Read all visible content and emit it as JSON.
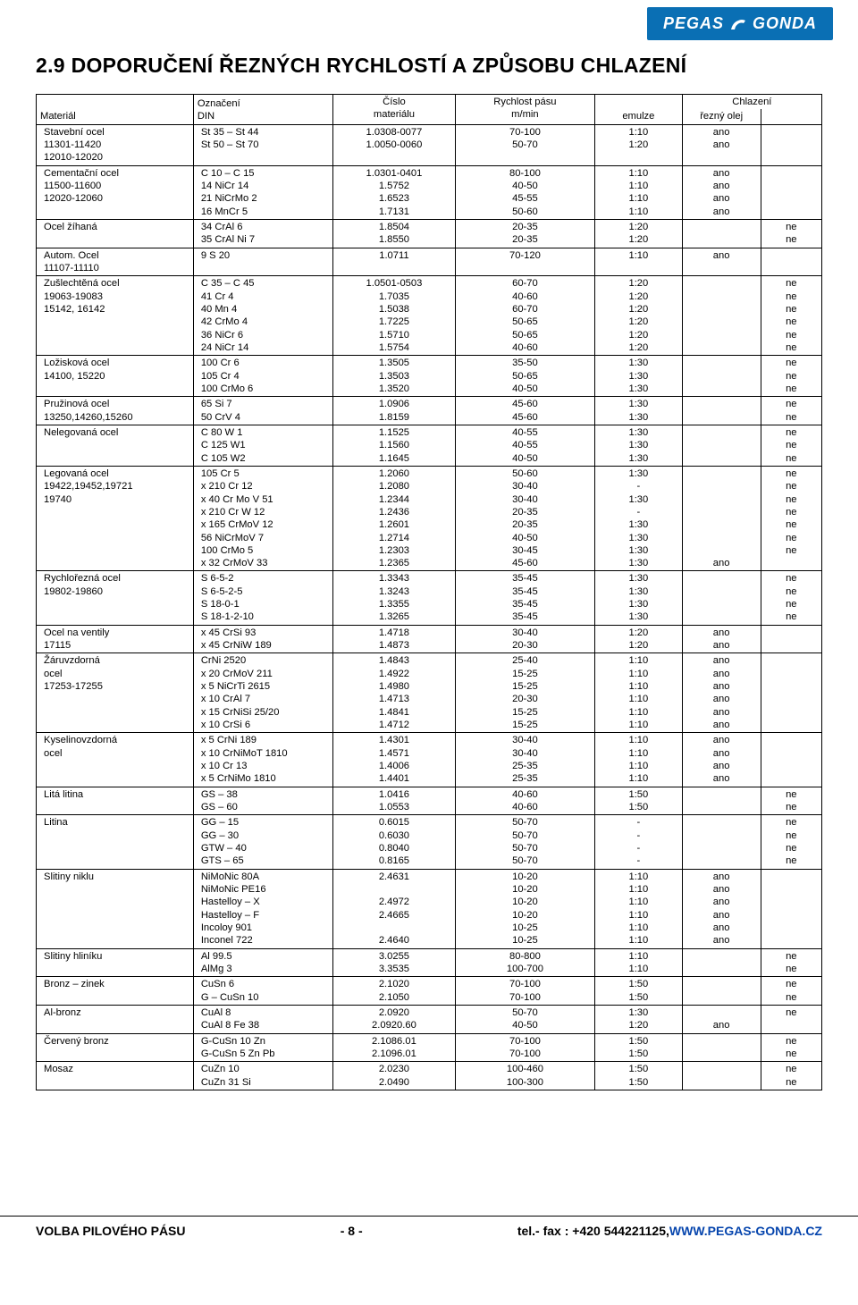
{
  "brand": {
    "name": "PEGAS   GONDA",
    "bg": "#0a6fb4",
    "fg": "#ffffff"
  },
  "title": "2.9  DOPORUČENÍ ŘEZNÝCH RYCHLOSTÍ A ZPŮSOBU CHLAZENÍ",
  "headers": {
    "material": "Materiál",
    "din": "Označení\nDIN",
    "num": "Číslo\nmateriálu",
    "speed": "Rychlost pásu\nm/min",
    "emulsion": "emulze",
    "cooling": "Chlazení",
    "oil": "řezný olej"
  },
  "groups": [
    {
      "material": [
        "Stavební ocel",
        "11301-11420",
        "12010-12020"
      ],
      "din": [
        "St 35 – St 44",
        "St 50 – St 70"
      ],
      "num": [
        "1.0308-0077",
        "1.0050-0060"
      ],
      "speed": [
        "70-100",
        "50-70"
      ],
      "em": [
        "1:10",
        "1:20"
      ],
      "oil": [
        "ano",
        "ano"
      ],
      "blank": [
        "",
        ""
      ]
    },
    {
      "material": [
        "Cementační ocel",
        "11500-11600",
        "12020-12060",
        ""
      ],
      "din": [
        "C 10 – C 15",
        "14 NiCr 14",
        "21 NiCrMo 2",
        "16 MnCr 5"
      ],
      "num": [
        "1.0301-0401",
        "1.5752",
        "1.6523",
        "1.7131"
      ],
      "speed": [
        "80-100",
        "40-50",
        "45-55",
        "50-60"
      ],
      "em": [
        "1:10",
        "1:10",
        "1:10",
        "1:10"
      ],
      "oil": [
        "ano",
        "ano",
        "ano",
        "ano"
      ],
      "blank": [
        "",
        "",
        "",
        ""
      ]
    },
    {
      "material": [
        "Ocel žíhaná",
        ""
      ],
      "din": [
        "34 CrAl 6",
        "35 CrAl Ni 7"
      ],
      "num": [
        "1.8504",
        "1.8550"
      ],
      "speed": [
        "20-35",
        "20-35"
      ],
      "em": [
        "1:20",
        "1:20"
      ],
      "oil": [
        "",
        ""
      ],
      "blank": [
        "ne",
        "ne"
      ]
    },
    {
      "material": [
        "Autom. Ocel",
        "11107-11110"
      ],
      "din": [
        "9 S 20"
      ],
      "num": [
        "1.0711"
      ],
      "speed": [
        "70-120"
      ],
      "em": [
        "1:10"
      ],
      "oil": [
        "ano"
      ],
      "blank": [
        ""
      ]
    },
    {
      "material": [
        "Zušlechtěná ocel",
        "19063-19083",
        "15142, 16142",
        "",
        "",
        ""
      ],
      "din": [
        "C 35 – C 45",
        "41 Cr 4",
        "40 Mn 4",
        "42 CrMo 4",
        "36 NiCr 6",
        "24 NiCr 14"
      ],
      "num": [
        "1.0501-0503",
        "1.7035",
        "1.5038",
        "1.7225",
        "1.5710",
        "1.5754"
      ],
      "speed": [
        "60-70",
        "40-60",
        "60-70",
        "50-65",
        "50-65",
        "40-60"
      ],
      "em": [
        "1:20",
        "1:20",
        "1:20",
        "1:20",
        "1:20",
        "1:20"
      ],
      "oil": [
        "",
        "",
        "",
        "",
        "",
        ""
      ],
      "blank": [
        "ne",
        "ne",
        "ne",
        "ne",
        "ne",
        "ne"
      ]
    },
    {
      "material": [
        "Ložisková ocel",
        "14100, 15220",
        ""
      ],
      "din": [
        "100 Cr 6",
        "105 Cr 4",
        "100 CrMo 6"
      ],
      "num": [
        "1.3505",
        "1.3503",
        "1.3520"
      ],
      "speed": [
        "35-50",
        "50-65",
        "40-50"
      ],
      "em": [
        "1:30",
        "1:30",
        "1:30"
      ],
      "oil": [
        "",
        "",
        ""
      ],
      "blank": [
        "ne",
        "ne",
        "ne"
      ]
    },
    {
      "material": [
        "Pružinová ocel",
        "13250,14260,15260"
      ],
      "din": [
        "65 Si 7",
        "50 CrV 4"
      ],
      "num": [
        "1.0906",
        "1.8159"
      ],
      "speed": [
        "45-60",
        "45-60"
      ],
      "em": [
        "1:30",
        "1:30"
      ],
      "oil": [
        "",
        ""
      ],
      "blank": [
        "ne",
        "ne"
      ]
    },
    {
      "material": [
        "Nelegovaná ocel",
        "",
        ""
      ],
      "din": [
        "C 80 W 1",
        "C 125 W1",
        "C 105 W2"
      ],
      "num": [
        "1.1525",
        "1.1560",
        "1.1645"
      ],
      "speed": [
        "40-55",
        "40-55",
        "40-50"
      ],
      "em": [
        "1:30",
        "1:30",
        "1:30"
      ],
      "oil": [
        "",
        "",
        ""
      ],
      "blank": [
        "ne",
        "ne",
        "ne"
      ]
    },
    {
      "material": [
        "Legovaná ocel",
        "19422,19452,19721",
        "19740",
        "",
        "",
        "",
        "",
        ""
      ],
      "din": [
        "105 Cr 5",
        "x 210 Cr 12",
        "x 40 Cr Mo V 51",
        "x 210 Cr W 12",
        "x 165 CrMoV 12",
        "56 NiCrMoV 7",
        "100 CrMo 5",
        "x 32 CrMoV 33"
      ],
      "num": [
        "1.2060",
        "1.2080",
        "1.2344",
        "1.2436",
        "1.2601",
        "1.2714",
        "1.2303",
        "1.2365"
      ],
      "speed": [
        "50-60",
        "30-40",
        "30-40",
        "20-35",
        "20-35",
        "40-50",
        "30-45",
        "45-60"
      ],
      "em": [
        "1:30",
        "-",
        "1:30",
        "-",
        "1:30",
        "1:30",
        "1:30",
        "1:30"
      ],
      "oil": [
        "",
        "",
        "",
        "",
        "",
        "",
        "",
        "ano"
      ],
      "blank": [
        "ne",
        "ne",
        "ne",
        "ne",
        "ne",
        "ne",
        "ne",
        ""
      ]
    },
    {
      "material": [
        "Rychlořezná ocel",
        "19802-19860",
        "",
        ""
      ],
      "din": [
        "S 6-5-2",
        "S 6-5-2-5",
        "S 18-0-1",
        "S 18-1-2-10"
      ],
      "num": [
        "1.3343",
        "1.3243",
        "1.3355",
        "1.3265"
      ],
      "speed": [
        "35-45",
        "35-45",
        "35-45",
        "35-45"
      ],
      "em": [
        "1:30",
        "1:30",
        "1:30",
        "1:30"
      ],
      "oil": [
        "",
        "",
        "",
        ""
      ],
      "blank": [
        "ne",
        "ne",
        "ne",
        "ne"
      ]
    },
    {
      "material": [
        "Ocel na ventily",
        "17115"
      ],
      "din": [
        "x 45 CrSi 93",
        "x 45 CrNiW 189"
      ],
      "num": [
        "1.4718",
        "1.4873"
      ],
      "speed": [
        "30-40",
        "20-30"
      ],
      "em": [
        "1:20",
        "1:20"
      ],
      "oil": [
        "ano",
        "ano"
      ],
      "blank": [
        "",
        ""
      ]
    },
    {
      "material": [
        "Žáruvzdorná",
        "ocel",
        "17253-17255",
        "",
        "",
        ""
      ],
      "din": [
        "CrNi 2520",
        "x 20 CrMoV 211",
        "x 5 NiCrTi 2615",
        "x 10 CrAl 7",
        "x 15 CrNiSi 25/20",
        "x 10 CrSi 6"
      ],
      "num": [
        "1.4843",
        "1.4922",
        "1.4980",
        "1.4713",
        "1.4841",
        "1.4712"
      ],
      "speed": [
        "25-40",
        "15-25",
        "15-25",
        "20-30",
        "15-25",
        "15-25"
      ],
      "em": [
        "1:10",
        "1:10",
        "1:10",
        "1:10",
        "1:10",
        "1:10"
      ],
      "oil": [
        "ano",
        "ano",
        "ano",
        "ano",
        "ano",
        "ano"
      ],
      "blank": [
        "",
        "",
        "",
        "",
        "",
        ""
      ]
    },
    {
      "material": [
        "Kyselinovzdorná",
        "ocel",
        "",
        ""
      ],
      "din": [
        "x 5 CrNi 189",
        "x 10 CrNiMoT 1810",
        "x 10 Cr 13",
        "x 5 CrNiMo 1810"
      ],
      "num": [
        "1.4301",
        "1.4571",
        "1.4006",
        "1.4401"
      ],
      "speed": [
        "30-40",
        "30-40",
        "25-35",
        "25-35"
      ],
      "em": [
        "1:10",
        "1:10",
        "1:10",
        "1:10"
      ],
      "oil": [
        "ano",
        "ano",
        "ano",
        "ano"
      ],
      "blank": [
        "",
        "",
        "",
        ""
      ]
    },
    {
      "material": [
        "Litá litina",
        ""
      ],
      "din": [
        "GS – 38",
        "GS – 60"
      ],
      "num": [
        "1.0416",
        "1.0553"
      ],
      "speed": [
        "40-60",
        "40-60"
      ],
      "em": [
        "1:50",
        "1:50"
      ],
      "oil": [
        "",
        ""
      ],
      "blank": [
        "ne",
        "ne"
      ]
    },
    {
      "material": [
        "Litina",
        "",
        "",
        ""
      ],
      "din": [
        "GG – 15",
        "GG – 30",
        "GTW – 40",
        "GTS – 65"
      ],
      "num": [
        "0.6015",
        "0.6030",
        "0.8040",
        "0.8165"
      ],
      "speed": [
        "50-70",
        "50-70",
        "50-70",
        "50-70"
      ],
      "em": [
        "-",
        "-",
        "-",
        "-"
      ],
      "oil": [
        "",
        "",
        "",
        ""
      ],
      "blank": [
        "ne",
        "ne",
        "ne",
        "ne"
      ]
    },
    {
      "material": [
        "Slitiny niklu",
        "",
        "",
        "",
        "",
        ""
      ],
      "din": [
        "NiMoNic 80A",
        "NiMoNic PE16",
        "Hastelloy – X",
        "Hastelloy – F",
        "Incoloy 901",
        "Inconel 722"
      ],
      "num": [
        "2.4631",
        "",
        "2.4972",
        "2.4665",
        "",
        "2.4640"
      ],
      "speed": [
        "10-20",
        "10-20",
        "10-20",
        "10-20",
        "10-25",
        "10-25"
      ],
      "em": [
        "1:10",
        "1:10",
        "1:10",
        "1:10",
        "1:10",
        "1:10"
      ],
      "oil": [
        "ano",
        "ano",
        "ano",
        "ano",
        "ano",
        "ano"
      ],
      "blank": [
        "",
        "",
        "",
        "",
        "",
        ""
      ]
    },
    {
      "material": [
        "Slitiny hliníku",
        ""
      ],
      "din": [
        "Al 99.5",
        "AlMg 3"
      ],
      "num": [
        "3.0255",
        "3.3535"
      ],
      "speed": [
        "80-800",
        "100-700"
      ],
      "em": [
        "1:10",
        "1:10"
      ],
      "oil": [
        "",
        ""
      ],
      "blank": [
        "ne",
        "ne"
      ]
    },
    {
      "material": [
        "Bronz – zinek",
        ""
      ],
      "din": [
        "CuSn 6",
        "G – CuSn 10"
      ],
      "num": [
        "2.1020",
        "2.1050"
      ],
      "speed": [
        "70-100",
        "70-100"
      ],
      "em": [
        "1:50",
        "1:50"
      ],
      "oil": [
        "",
        ""
      ],
      "blank": [
        "ne",
        "ne"
      ]
    },
    {
      "material": [
        "Al-bronz",
        ""
      ],
      "din": [
        "CuAl 8",
        "CuAl 8 Fe 38"
      ],
      "num": [
        "2.0920",
        "2.0920.60"
      ],
      "speed": [
        "50-70",
        "40-50"
      ],
      "em": [
        "1:30",
        "1:20"
      ],
      "oil": [
        "",
        "ano"
      ],
      "blank": [
        "ne",
        ""
      ]
    },
    {
      "material": [
        "Červený bronz",
        ""
      ],
      "din": [
        "G-CuSn 10 Zn",
        "G-CuSn 5 Zn Pb"
      ],
      "num": [
        "2.1086.01",
        "2.1096.01"
      ],
      "speed": [
        "70-100",
        "70-100"
      ],
      "em": [
        "1:50",
        "1:50"
      ],
      "oil": [
        "",
        ""
      ],
      "blank": [
        "ne",
        "ne"
      ]
    },
    {
      "material": [
        "Mosaz",
        ""
      ],
      "din": [
        "CuZn 10",
        "CuZn 31 Si"
      ],
      "num": [
        "2.0230",
        "2.0490"
      ],
      "speed": [
        "100-460",
        "100-300"
      ],
      "em": [
        "1:50",
        "1:50"
      ],
      "oil": [
        "",
        ""
      ],
      "blank": [
        "ne",
        "ne"
      ]
    }
  ],
  "footer": {
    "left": "VOLBA PILOVÉHO PÁSU",
    "page": "- 8 -",
    "right_prefix": "tel.- fax : +420 544221125,",
    "right_link": "WWW.PEGAS-GONDA.CZ"
  }
}
